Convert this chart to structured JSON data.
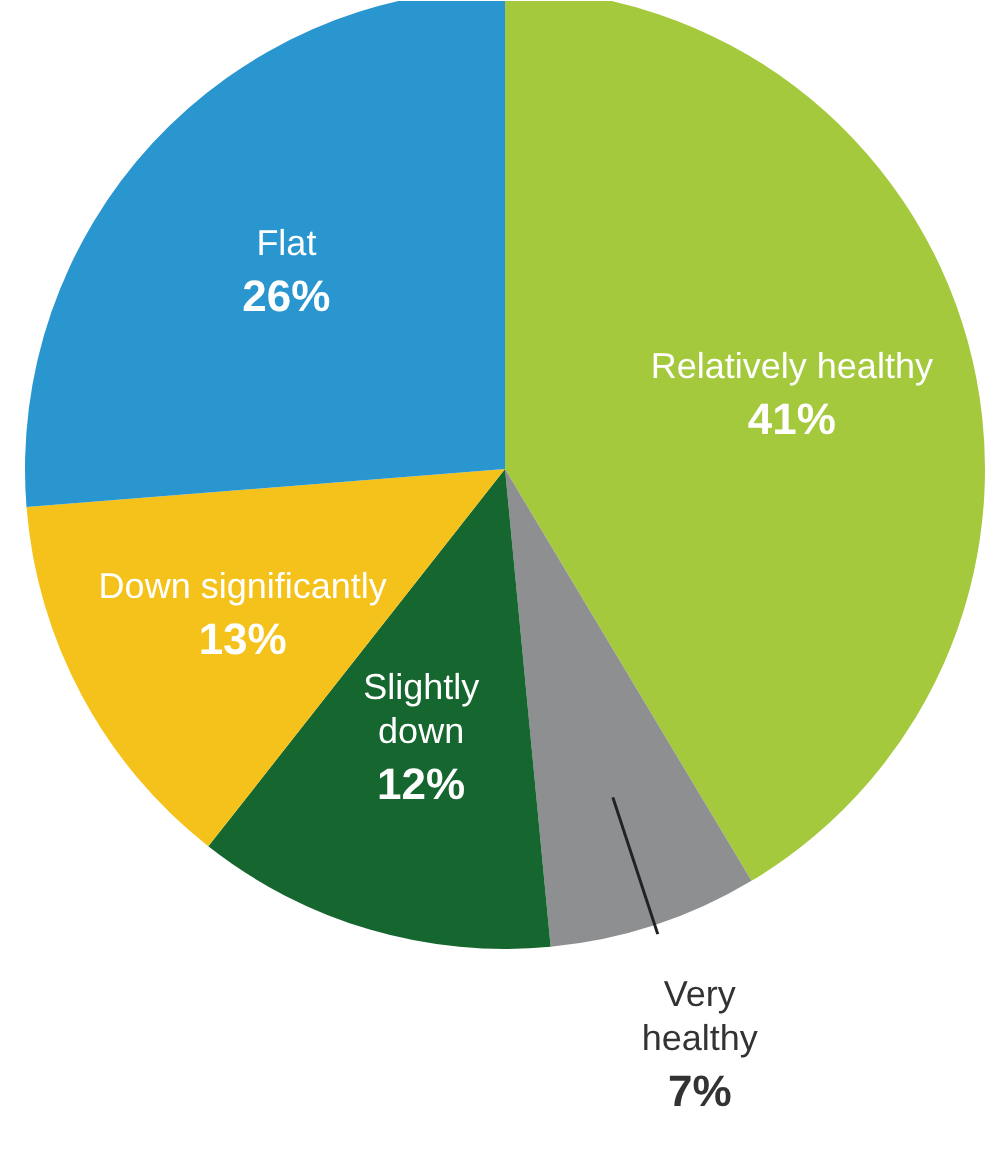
{
  "chart_data": {
    "type": "pie",
    "categories": [
      "Relatively healthy",
      "Very\nhealthy",
      "Slightly\ndown",
      "Down significantly",
      "Flat"
    ],
    "values": [
      41,
      7,
      12,
      13,
      26
    ],
    "colors": [
      "#a5c93c",
      "#8e8f91",
      "#16662f",
      "#f4c21a",
      "#2a96cf"
    ],
    "value_labels": [
      "41%",
      "7%",
      "12%",
      "13%",
      "26%"
    ]
  }
}
